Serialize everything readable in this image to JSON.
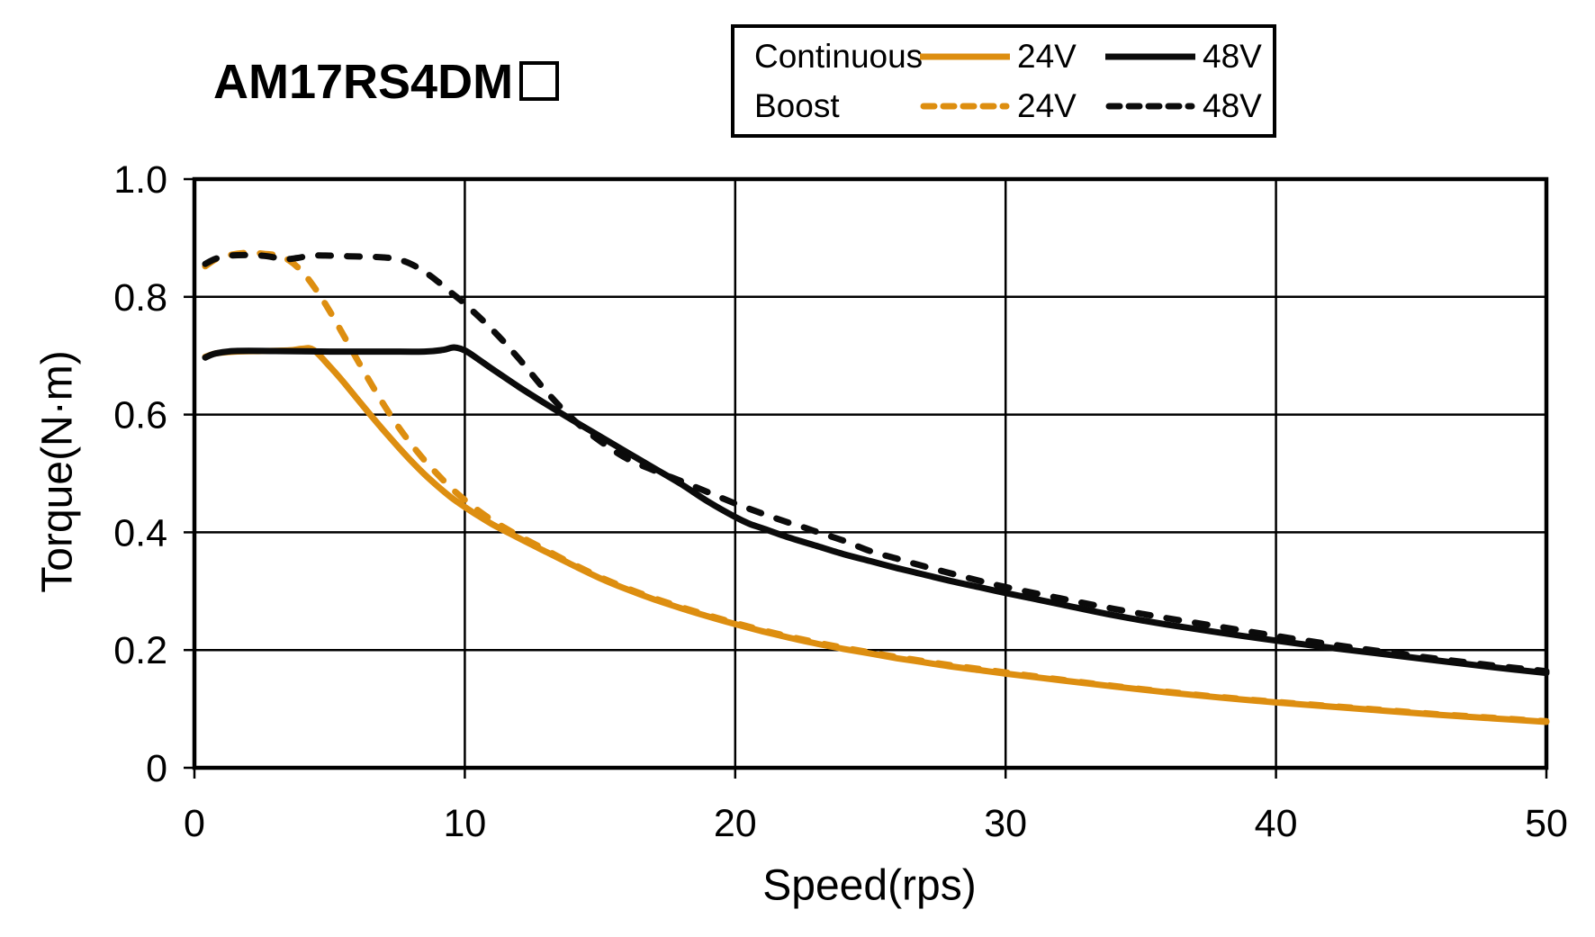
{
  "title": {
    "model": "AM17RS4DM",
    "model_suffix_placeholder": "□"
  },
  "legend": {
    "rows": [
      {
        "label": "Continuous",
        "entries": [
          {
            "label": "24V",
            "color": "#DD8E10",
            "style": "solid"
          },
          {
            "label": "48V",
            "color": "#0b0b0b",
            "style": "solid"
          }
        ]
      },
      {
        "label": "Boost",
        "entries": [
          {
            "label": "24V",
            "color": "#DD8E10",
            "style": "dashed"
          },
          {
            "label": "48V",
            "color": "#0b0b0b",
            "style": "dashed"
          }
        ]
      }
    ]
  },
  "chart_data": {
    "type": "line",
    "title": "AM17RS4DM□",
    "xlabel": "Speed(rps)",
    "ylabel": "Torque(N·m)",
    "xlim": [
      0,
      50
    ],
    "ylim": [
      0,
      1.0
    ],
    "x_ticks": [
      0,
      10,
      20,
      30,
      40,
      50
    ],
    "x_tick_labels": [
      "0",
      "10",
      "20",
      "30",
      "40",
      "50"
    ],
    "y_ticks": [
      0,
      0.2,
      0.4,
      0.6,
      0.8,
      1.0
    ],
    "y_tick_labels": [
      "0",
      "0.2",
      "0.4",
      "0.6",
      "0.8",
      "1.0"
    ],
    "grid": true,
    "legend_position": "top-right",
    "series": [
      {
        "name": "Continuous 24V",
        "group": "Continuous",
        "voltage": "24V",
        "style": "solid",
        "color": "#DD8E10",
        "points": [
          [
            0.4,
            0.698
          ],
          [
            0.8,
            0.704
          ],
          [
            1.5,
            0.707
          ],
          [
            2.5,
            0.708
          ],
          [
            3.5,
            0.709
          ],
          [
            4.0,
            0.712
          ],
          [
            4.4,
            0.71
          ],
          [
            5,
            0.682
          ],
          [
            5.5,
            0.656
          ],
          [
            6,
            0.628
          ],
          [
            6.5,
            0.6
          ],
          [
            7,
            0.573
          ],
          [
            7.5,
            0.547
          ],
          [
            8,
            0.522
          ],
          [
            8.5,
            0.499
          ],
          [
            9,
            0.478
          ],
          [
            9.5,
            0.459
          ],
          [
            10,
            0.443
          ],
          [
            10.5,
            0.428
          ],
          [
            11,
            0.414
          ],
          [
            11.5,
            0.402
          ],
          [
            12,
            0.39
          ],
          [
            13,
            0.367
          ],
          [
            14,
            0.344
          ],
          [
            15,
            0.322
          ],
          [
            16,
            0.303
          ],
          [
            17,
            0.286
          ],
          [
            18,
            0.271
          ],
          [
            19,
            0.257
          ],
          [
            20,
            0.244
          ],
          [
            21,
            0.232
          ],
          [
            22,
            0.221
          ],
          [
            23,
            0.211
          ],
          [
            24,
            0.202
          ],
          [
            25,
            0.194
          ],
          [
            26,
            0.186
          ],
          [
            27,
            0.179
          ],
          [
            28,
            0.172
          ],
          [
            29,
            0.166
          ],
          [
            30,
            0.16
          ],
          [
            32,
            0.149
          ],
          [
            34,
            0.138
          ],
          [
            36,
            0.128
          ],
          [
            38,
            0.119
          ],
          [
            40,
            0.111
          ],
          [
            42,
            0.104
          ],
          [
            44,
            0.097
          ],
          [
            46,
            0.09
          ],
          [
            48,
            0.084
          ],
          [
            50,
            0.078
          ]
        ]
      },
      {
        "name": "Boost 24V",
        "group": "Boost",
        "voltage": "24V",
        "style": "dashed",
        "color": "#DD8E10",
        "points": [
          [
            0.4,
            0.852
          ],
          [
            0.8,
            0.864
          ],
          [
            1.3,
            0.871
          ],
          [
            2,
            0.875
          ],
          [
            2.6,
            0.873
          ],
          [
            3.1,
            0.87
          ],
          [
            3.5,
            0.862
          ],
          [
            4,
            0.842
          ],
          [
            4.5,
            0.812
          ],
          [
            5,
            0.776
          ],
          [
            5.5,
            0.736
          ],
          [
            6,
            0.695
          ],
          [
            6.5,
            0.655
          ],
          [
            7,
            0.617
          ],
          [
            7.5,
            0.582
          ],
          [
            8,
            0.551
          ],
          [
            8.5,
            0.523
          ],
          [
            9,
            0.498
          ],
          [
            9.5,
            0.475
          ],
          [
            10,
            0.455
          ],
          [
            10.5,
            0.437
          ],
          [
            11,
            0.421
          ],
          [
            11.5,
            0.407
          ],
          [
            12,
            0.394
          ],
          [
            13,
            0.37
          ],
          [
            14,
            0.346
          ],
          [
            15,
            0.324
          ],
          [
            16,
            0.305
          ],
          [
            17,
            0.288
          ],
          [
            18,
            0.273
          ],
          [
            19,
            0.259
          ],
          [
            20,
            0.246
          ],
          [
            21,
            0.234
          ],
          [
            22,
            0.223
          ],
          [
            23,
            0.213
          ],
          [
            24,
            0.204
          ],
          [
            25,
            0.196
          ],
          [
            26,
            0.188
          ],
          [
            27,
            0.181
          ],
          [
            28,
            0.174
          ],
          [
            29,
            0.168
          ],
          [
            30,
            0.162
          ],
          [
            32,
            0.15
          ],
          [
            34,
            0.139
          ],
          [
            36,
            0.129
          ],
          [
            38,
            0.12
          ],
          [
            40,
            0.112
          ],
          [
            42,
            0.105
          ],
          [
            44,
            0.098
          ],
          [
            46,
            0.091
          ],
          [
            48,
            0.085
          ],
          [
            50,
            0.079
          ]
        ]
      },
      {
        "name": "Continuous 48V",
        "group": "Continuous",
        "voltage": "48V",
        "style": "solid",
        "color": "#0b0b0b",
        "points": [
          [
            0.4,
            0.697
          ],
          [
            0.8,
            0.704
          ],
          [
            1.5,
            0.708
          ],
          [
            3,
            0.708
          ],
          [
            5,
            0.707
          ],
          [
            7,
            0.707
          ],
          [
            8.5,
            0.707
          ],
          [
            9.2,
            0.71
          ],
          [
            9.6,
            0.714
          ],
          [
            10,
            0.709
          ],
          [
            10.5,
            0.694
          ],
          [
            11,
            0.678
          ],
          [
            12,
            0.647
          ],
          [
            13,
            0.618
          ],
          [
            14,
            0.59
          ],
          [
            15,
            0.563
          ],
          [
            16,
            0.536
          ],
          [
            17,
            0.509
          ],
          [
            18,
            0.482
          ],
          [
            19,
            0.452
          ],
          [
            20,
            0.426
          ],
          [
            20.5,
            0.415
          ],
          [
            21,
            0.407
          ],
          [
            22,
            0.391
          ],
          [
            23,
            0.377
          ],
          [
            24,
            0.363
          ],
          [
            25,
            0.351
          ],
          [
            26,
            0.339
          ],
          [
            27,
            0.328
          ],
          [
            28,
            0.317
          ],
          [
            29,
            0.307
          ],
          [
            30,
            0.297
          ],
          [
            32,
            0.278
          ],
          [
            34,
            0.259
          ],
          [
            36,
            0.243
          ],
          [
            38,
            0.229
          ],
          [
            40,
            0.216
          ],
          [
            42,
            0.204
          ],
          [
            44,
            0.193
          ],
          [
            46,
            0.182
          ],
          [
            48,
            0.171
          ],
          [
            50,
            0.161
          ]
        ]
      },
      {
        "name": "Boost 48V",
        "group": "Boost",
        "voltage": "48V",
        "style": "dashed",
        "color": "#0b0b0b",
        "points": [
          [
            0.4,
            0.856
          ],
          [
            0.8,
            0.865
          ],
          [
            1.3,
            0.87
          ],
          [
            2,
            0.871
          ],
          [
            2.7,
            0.869
          ],
          [
            3.3,
            0.864
          ],
          [
            3.8,
            0.866
          ],
          [
            4.3,
            0.87
          ],
          [
            5,
            0.87
          ],
          [
            5.7,
            0.869
          ],
          [
            6.4,
            0.868
          ],
          [
            7,
            0.867
          ],
          [
            7.5,
            0.864
          ],
          [
            8,
            0.856
          ],
          [
            8.5,
            0.843
          ],
          [
            9,
            0.826
          ],
          [
            9.5,
            0.807
          ],
          [
            10,
            0.788
          ],
          [
            11,
            0.745
          ],
          [
            12,
            0.695
          ],
          [
            13,
            0.64
          ],
          [
            14,
            0.592
          ],
          [
            15,
            0.555
          ],
          [
            16,
            0.525
          ],
          [
            17,
            0.505
          ],
          [
            18,
            0.487
          ],
          [
            19,
            0.468
          ],
          [
            20,
            0.449
          ],
          [
            21,
            0.432
          ],
          [
            22,
            0.416
          ],
          [
            22.5,
            0.409
          ],
          [
            23,
            0.401
          ],
          [
            24,
            0.386
          ],
          [
            25,
            0.368
          ],
          [
            26,
            0.355
          ],
          [
            27,
            0.342
          ],
          [
            28,
            0.33
          ],
          [
            29,
            0.318
          ],
          [
            30,
            0.307
          ],
          [
            32,
            0.288
          ],
          [
            34,
            0.27
          ],
          [
            36,
            0.254
          ],
          [
            38,
            0.239
          ],
          [
            40,
            0.224
          ],
          [
            42,
            0.21
          ],
          [
            44,
            0.197
          ],
          [
            46,
            0.185
          ],
          [
            48,
            0.174
          ],
          [
            50,
            0.164
          ]
        ]
      }
    ]
  }
}
